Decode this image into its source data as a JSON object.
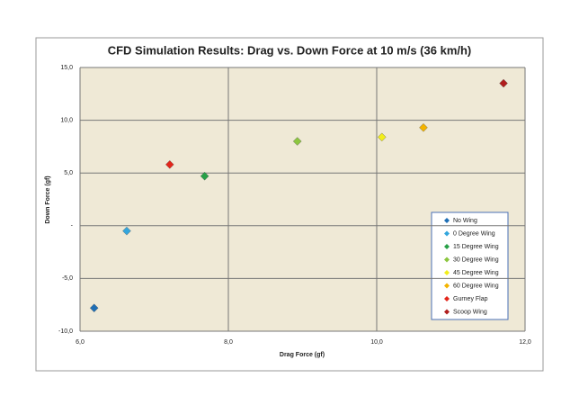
{
  "chart_data": {
    "type": "scatter",
    "title": "CFD Simulation Results: Drag vs. Down Force at 10 m/s (36 km/h)",
    "x_label": "Drag Force (gf)",
    "y_label": "Down Force (gf)",
    "series": [
      {
        "name": "No Wing",
        "color": "#1f6fb5",
        "x": [
          6.19
        ],
        "values": [
          -7.8
        ]
      },
      {
        "name": "0 Degree Wing",
        "color": "#33a6dd",
        "x": [
          6.63
        ],
        "values": [
          -0.5
        ]
      },
      {
        "name": "15 Degree Wing",
        "color": "#27a047",
        "x": [
          7.68
        ],
        "values": [
          4.7
        ]
      },
      {
        "name": "30 Degree Wing",
        "color": "#8cc63f",
        "x": [
          8.93
        ],
        "values": [
          8.0
        ]
      },
      {
        "name": "45 Degree Wing",
        "color": "#f2ee1a",
        "x": [
          10.07
        ],
        "values": [
          8.4
        ]
      },
      {
        "name": "60 Degree Wing",
        "color": "#f4b400",
        "x": [
          10.63
        ],
        "values": [
          9.3
        ]
      },
      {
        "name": "Gurney Flap",
        "color": "#e3261b",
        "x": [
          7.21
        ],
        "values": [
          5.8
        ]
      },
      {
        "name": "Scoop Wing",
        "color": "#b01e1e",
        "x": [
          11.71
        ],
        "values": [
          13.5
        ]
      }
    ],
    "xlim": [
      6,
      12
    ],
    "xticks": [
      {
        "value": 6,
        "label": "6,0"
      },
      {
        "value": 8,
        "label": "8,0"
      },
      {
        "value": 10,
        "label": "10,0"
      },
      {
        "value": 12,
        "label": "12,0"
      }
    ],
    "ylim": [
      -10,
      15
    ],
    "yticks": [
      {
        "value": -10,
        "label": "-10,0"
      },
      {
        "value": -5,
        "label": "-5,0"
      },
      {
        "value": 0,
        "label": "-"
      },
      {
        "value": 5,
        "label": "5,0"
      },
      {
        "value": 10,
        "label": "10,0"
      },
      {
        "value": 15,
        "label": "15,0"
      }
    ],
    "grid": true,
    "legend": "right"
  }
}
